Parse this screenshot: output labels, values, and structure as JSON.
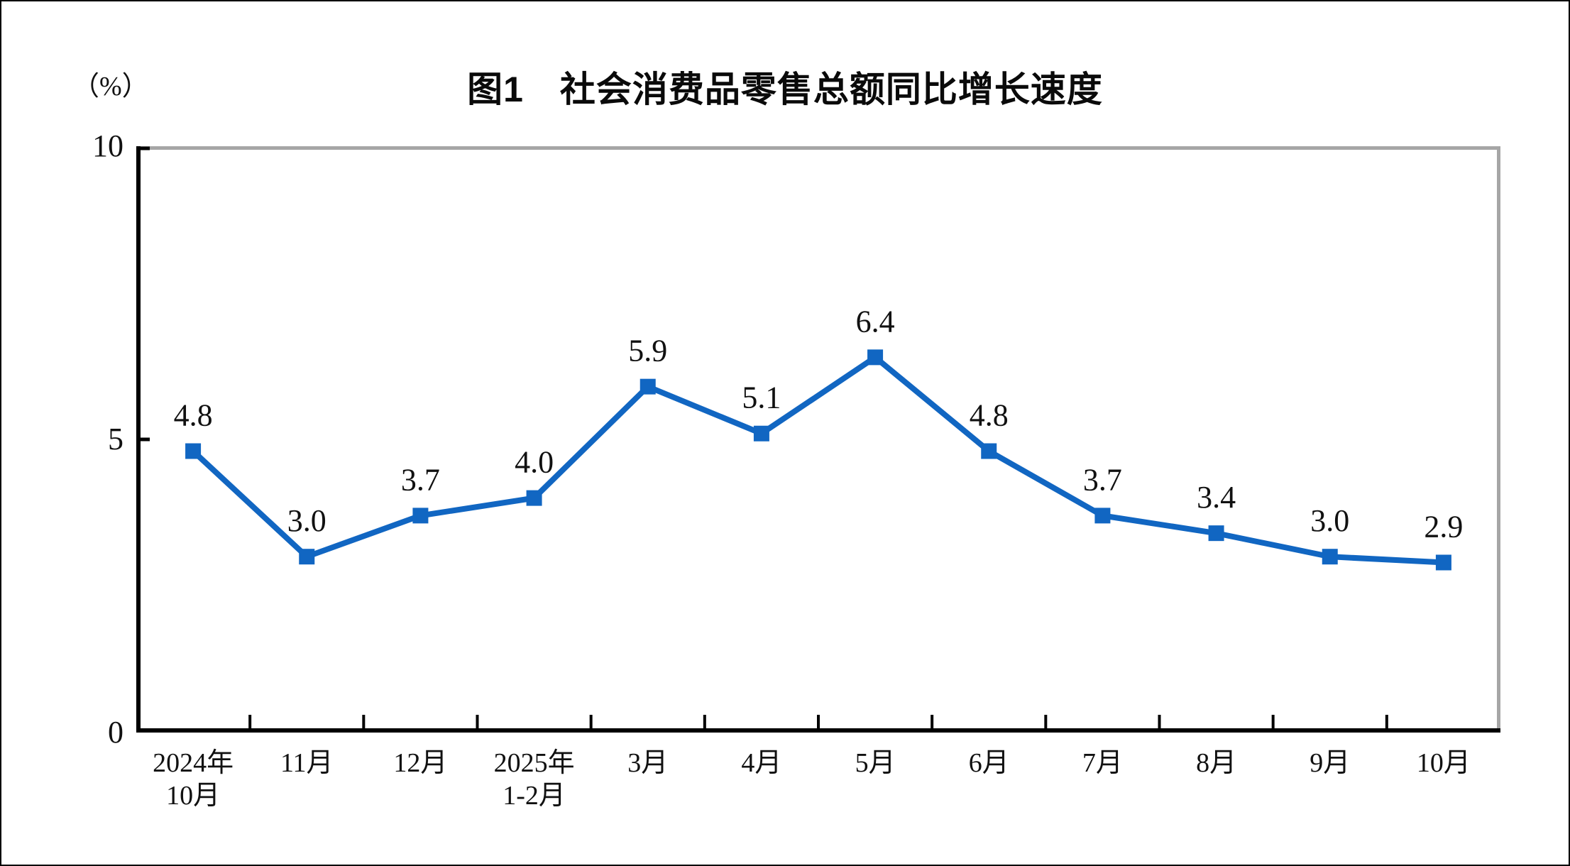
{
  "page": {
    "background": "#FFFFFF",
    "frame_border_color": "#000000"
  },
  "chart_data": {
    "type": "line",
    "title": "图1　社会消费品零售总额同比增长速度",
    "unit_label": "（%）",
    "categories": [
      "2024年\n10月",
      "11月",
      "12月",
      "2025年\n1-2月",
      "3月",
      "4月",
      "5月",
      "6月",
      "7月",
      "8月",
      "9月",
      "10月"
    ],
    "values": [
      4.8,
      3.0,
      3.7,
      4.0,
      5.9,
      5.1,
      6.4,
      4.8,
      3.7,
      3.4,
      3.0,
      2.9
    ],
    "value_labels": [
      "4.8",
      "3.0",
      "3.7",
      "4.0",
      "5.9",
      "5.1",
      "6.4",
      "4.8",
      "3.7",
      "3.4",
      "3.0",
      "2.9"
    ],
    "ylim": [
      0,
      10
    ],
    "yticks": [
      0,
      5,
      10
    ],
    "xlabel": "",
    "ylabel": "（%）",
    "grid": false,
    "legend": null,
    "line_color": "#1166C2",
    "marker": "square",
    "marker_color": "#1166C2",
    "axis_color": "#000000",
    "plot_border_color": "#A6A6A6",
    "label_color": "#111111"
  }
}
